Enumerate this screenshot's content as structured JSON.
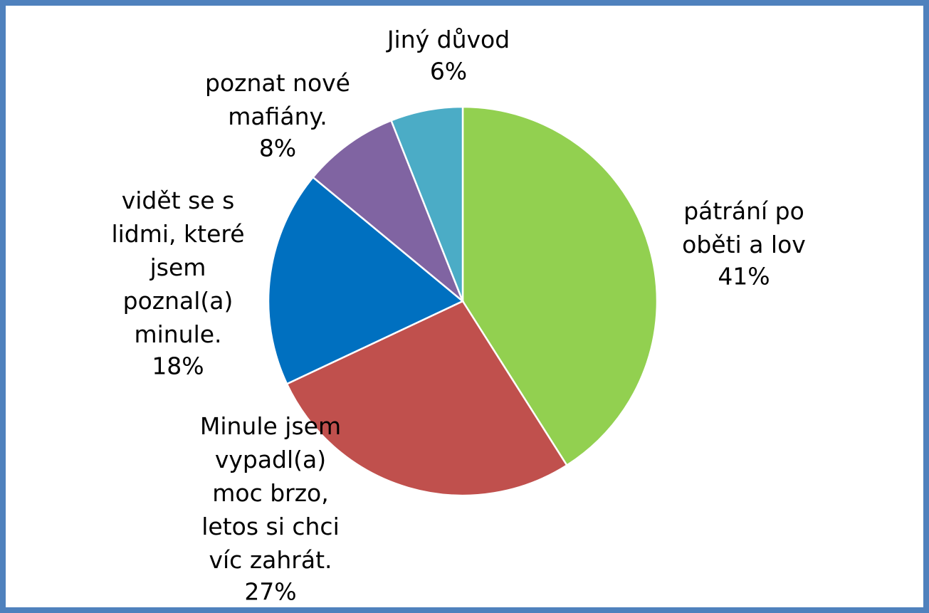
{
  "chart_data": {
    "type": "pie",
    "categories": [
      "pátrání po\noběti a lov",
      "Minule jsem\nvypadl(a)\nmoc brzo,\nletos si chci\nvíc zahrát.",
      "vidět se s\nlidmi, které\njsem\npoznal(a)\nminule.",
      "poznat nové\nmafiány.",
      "Jiný důvod"
    ],
    "values": [
      41,
      27,
      18,
      8,
      6
    ],
    "value_labels": [
      "41%",
      "27%",
      "18%",
      "8%",
      "6%"
    ],
    "colors": [
      "#92d050",
      "#c0504d",
      "#0070c0",
      "#8064a2",
      "#4bacc6"
    ]
  }
}
